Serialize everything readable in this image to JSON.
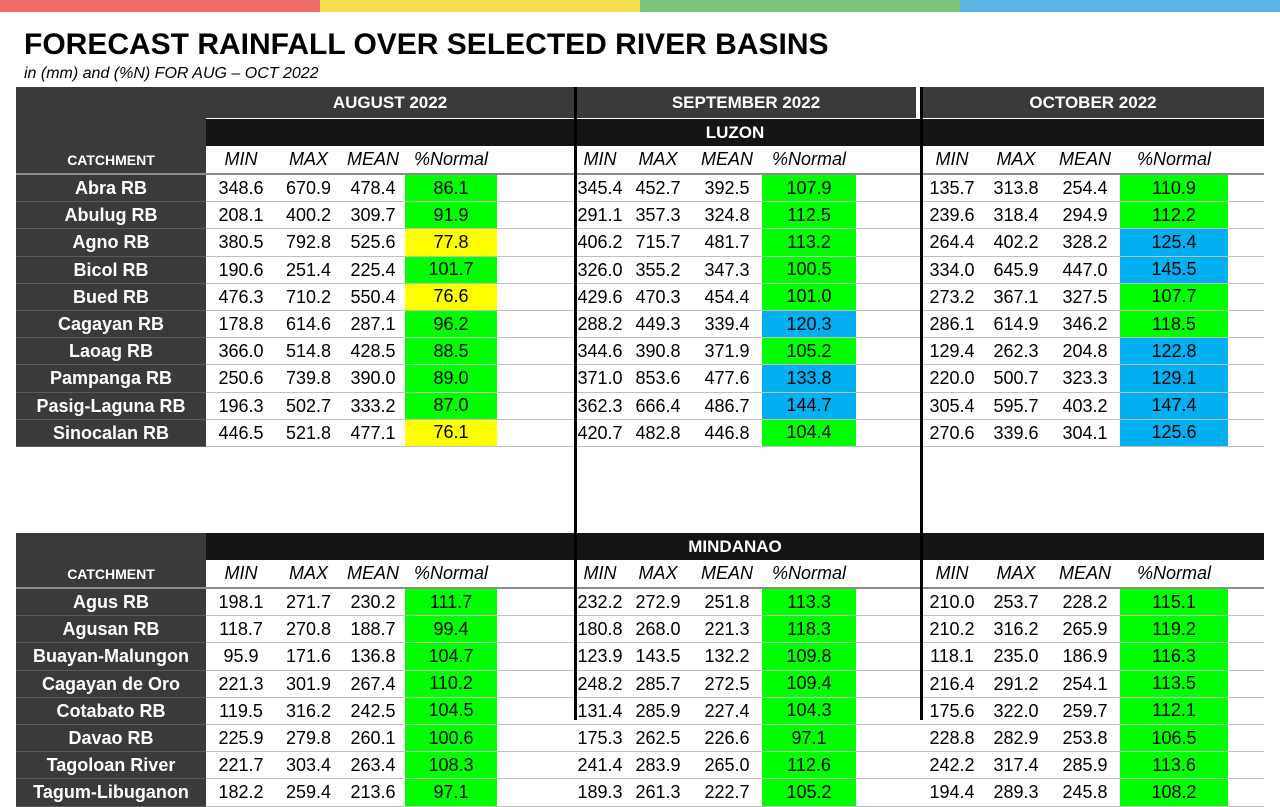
{
  "topbar_colors": [
    "#f26b6b",
    "#f5dc50",
    "#7cc47c",
    "#5ab4e6"
  ],
  "title": "FORECAST RAINFALL OVER SELECTED RIVER BASINS",
  "subtitle": "in (mm) and (%N) FOR AUG – OCT 2022",
  "months": [
    "AUGUST 2022",
    "SEPTEMBER 2022",
    "OCTOBER 2022"
  ],
  "columns": [
    "MIN",
    "MAX",
    "MEAN",
    "%Normal"
  ],
  "catchment_label": "CATCHMENT",
  "category_colors": {
    "green": "#00ff00",
    "yellow": "#ffff00",
    "blue": "#00b0f0"
  },
  "sections": [
    {
      "region": "LUZON",
      "rows": [
        {
          "name": "Abra RB",
          "aug": [
            "348.6",
            "670.9",
            "478.4",
            "86.1"
          ],
          "aug_c": "green",
          "sep": [
            "345.4",
            "452.7",
            "392.5",
            "107.9"
          ],
          "sep_c": "green",
          "oct": [
            "135.7",
            "313.8",
            "254.4",
            "110.9"
          ],
          "oct_c": "green"
        },
        {
          "name": "Abulug RB",
          "aug": [
            "208.1",
            "400.2",
            "309.7",
            "91.9"
          ],
          "aug_c": "green",
          "sep": [
            "291.1",
            "357.3",
            "324.8",
            "112.5"
          ],
          "sep_c": "green",
          "oct": [
            "239.6",
            "318.4",
            "294.9",
            "112.2"
          ],
          "oct_c": "green"
        },
        {
          "name": "Agno RB",
          "aug": [
            "380.5",
            "792.8",
            "525.6",
            "77.8"
          ],
          "aug_c": "yellow",
          "sep": [
            "406.2",
            "715.7",
            "481.7",
            "113.2"
          ],
          "sep_c": "green",
          "oct": [
            "264.4",
            "402.2",
            "328.2",
            "125.4"
          ],
          "oct_c": "blue"
        },
        {
          "name": "Bicol RB",
          "aug": [
            "190.6",
            "251.4",
            "225.4",
            "101.7"
          ],
          "aug_c": "green",
          "sep": [
            "326.0",
            "355.2",
            "347.3",
            "100.5"
          ],
          "sep_c": "green",
          "oct": [
            "334.0",
            "645.9",
            "447.0",
            "145.5"
          ],
          "oct_c": "blue"
        },
        {
          "name": "Bued RB",
          "aug": [
            "476.3",
            "710.2",
            "550.4",
            "76.6"
          ],
          "aug_c": "yellow",
          "sep": [
            "429.6",
            "470.3",
            "454.4",
            "101.0"
          ],
          "sep_c": "green",
          "oct": [
            "273.2",
            "367.1",
            "327.5",
            "107.7"
          ],
          "oct_c": "green"
        },
        {
          "name": "Cagayan RB",
          "aug": [
            "178.8",
            "614.6",
            "287.1",
            "96.2"
          ],
          "aug_c": "green",
          "sep": [
            "288.2",
            "449.3",
            "339.4",
            "120.3"
          ],
          "sep_c": "blue",
          "oct": [
            "286.1",
            "614.9",
            "346.2",
            "118.5"
          ],
          "oct_c": "green"
        },
        {
          "name": "Laoag RB",
          "aug": [
            "366.0",
            "514.8",
            "428.5",
            "88.5"
          ],
          "aug_c": "green",
          "sep": [
            "344.6",
            "390.8",
            "371.9",
            "105.2"
          ],
          "sep_c": "green",
          "oct": [
            "129.4",
            "262.3",
            "204.8",
            "122.8"
          ],
          "oct_c": "blue"
        },
        {
          "name": "Pampanga RB",
          "aug": [
            "250.6",
            "739.8",
            "390.0",
            "89.0"
          ],
          "aug_c": "green",
          "sep": [
            "371.0",
            "853.6",
            "477.6",
            "133.8"
          ],
          "sep_c": "blue",
          "oct": [
            "220.0",
            "500.7",
            "323.3",
            "129.1"
          ],
          "oct_c": "blue"
        },
        {
          "name": "Pasig-Laguna RB",
          "aug": [
            "196.3",
            "502.7",
            "333.2",
            "87.0"
          ],
          "aug_c": "green",
          "sep": [
            "362.3",
            "666.4",
            "486.7",
            "144.7"
          ],
          "sep_c": "blue",
          "oct": [
            "305.4",
            "595.7",
            "403.2",
            "147.4"
          ],
          "oct_c": "blue"
        },
        {
          "name": "Sinocalan RB",
          "aug": [
            "446.5",
            "521.8",
            "477.1",
            "76.1"
          ],
          "aug_c": "yellow",
          "sep": [
            "420.7",
            "482.8",
            "446.8",
            "104.4"
          ],
          "sep_c": "green",
          "oct": [
            "270.6",
            "339.6",
            "304.1",
            "125.6"
          ],
          "oct_c": "blue"
        }
      ]
    },
    {
      "region": "MINDANAO",
      "rows": [
        {
          "name": "Agus RB",
          "aug": [
            "198.1",
            "271.7",
            "230.2",
            "111.7"
          ],
          "aug_c": "green",
          "sep": [
            "232.2",
            "272.9",
            "251.8",
            "113.3"
          ],
          "sep_c": "green",
          "oct": [
            "210.0",
            "253.7",
            "228.2",
            "115.1"
          ],
          "oct_c": "green"
        },
        {
          "name": "Agusan RB",
          "aug": [
            "118.7",
            "270.8",
            "188.7",
            "99.4"
          ],
          "aug_c": "green",
          "sep": [
            "180.8",
            "268.0",
            "221.3",
            "118.3"
          ],
          "sep_c": "green",
          "oct": [
            "210.2",
            "316.2",
            "265.9",
            "119.2"
          ],
          "oct_c": "green"
        },
        {
          "name": "Buayan-Malungon",
          "aug": [
            "95.9",
            "171.6",
            "136.8",
            "104.7"
          ],
          "aug_c": "green",
          "sep": [
            "123.9",
            "143.5",
            "132.2",
            "109.8"
          ],
          "sep_c": "green",
          "oct": [
            "118.1",
            "235.0",
            "186.9",
            "116.3"
          ],
          "oct_c": "green"
        },
        {
          "name": "Cagayan de Oro",
          "aug": [
            "221.3",
            "301.9",
            "267.4",
            "110.2"
          ],
          "aug_c": "green",
          "sep": [
            "248.2",
            "285.7",
            "272.5",
            "109.4"
          ],
          "sep_c": "green",
          "oct": [
            "216.4",
            "291.2",
            "254.1",
            "113.5"
          ],
          "oct_c": "green"
        },
        {
          "name": "Cotabato RB",
          "aug": [
            "119.5",
            "316.2",
            "242.5",
            "104.5"
          ],
          "aug_c": "green",
          "sep": [
            "131.4",
            "285.9",
            "227.4",
            "104.3"
          ],
          "sep_c": "green",
          "oct": [
            "175.6",
            "322.0",
            "259.7",
            "112.1"
          ],
          "oct_c": "green"
        },
        {
          "name": "Davao RB",
          "aug": [
            "225.9",
            "279.8",
            "260.1",
            "100.6"
          ],
          "aug_c": "green",
          "sep": [
            "175.3",
            "262.5",
            "226.6",
            "97.1"
          ],
          "sep_c": "green",
          "oct": [
            "228.8",
            "282.9",
            "253.8",
            "106.5"
          ],
          "oct_c": "green"
        },
        {
          "name": "Tagoloan River",
          "aug": [
            "221.7",
            "303.4",
            "263.4",
            "108.3"
          ],
          "aug_c": "green",
          "sep": [
            "241.4",
            "283.9",
            "265.0",
            "112.6"
          ],
          "sep_c": "green",
          "oct": [
            "242.2",
            "317.4",
            "285.9",
            "113.6"
          ],
          "oct_c": "green"
        },
        {
          "name": "Tagum-Libuganon",
          "aug": [
            "182.2",
            "259.4",
            "213.6",
            "97.1"
          ],
          "aug_c": "green",
          "sep": [
            "189.3",
            "261.3",
            "222.7",
            "105.2"
          ],
          "sep_c": "green",
          "oct": [
            "194.4",
            "289.3",
            "245.8",
            "108.2"
          ],
          "oct_c": "green"
        }
      ]
    }
  ]
}
